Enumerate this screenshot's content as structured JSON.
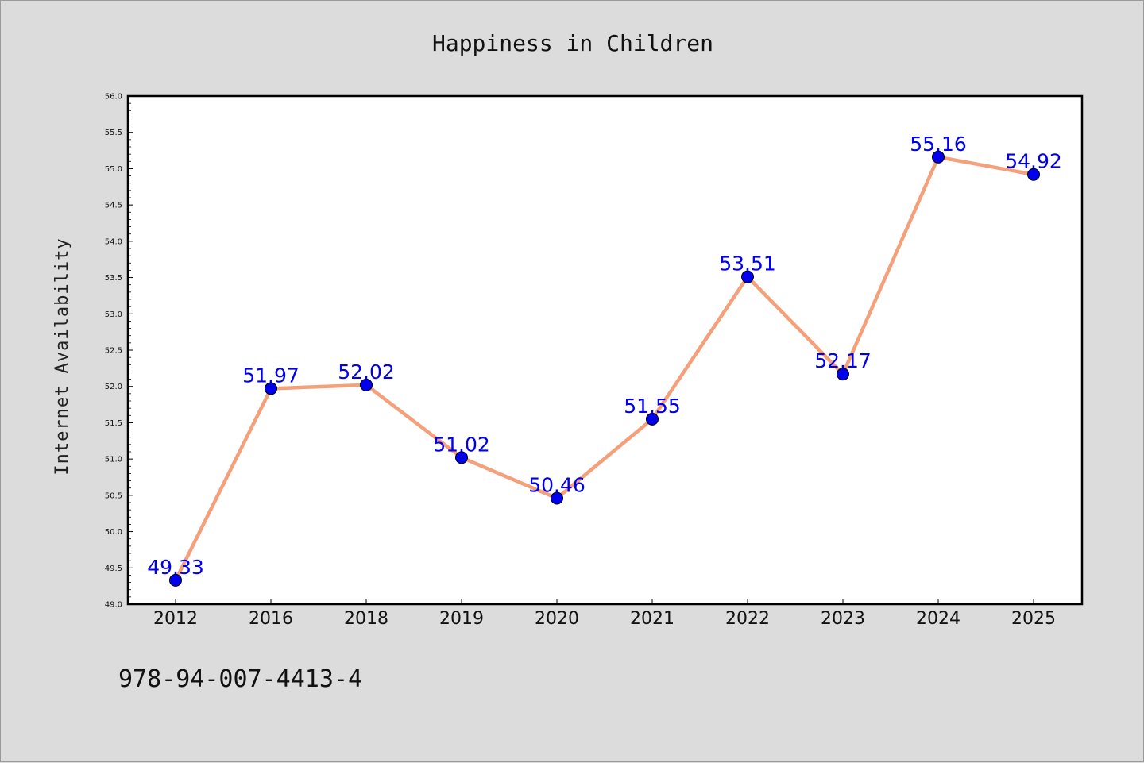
{
  "chart_data": {
    "type": "line",
    "title": "Happiness in Children",
    "xlabel": "",
    "ylabel": "Internet Availability",
    "categories": [
      "2012",
      "2016",
      "2018",
      "2019",
      "2020",
      "2021",
      "2022",
      "2023",
      "2024",
      "2025"
    ],
    "series": [
      {
        "values": [
          49.33,
          51.97,
          52.02,
          51.02,
          50.46,
          51.55,
          53.51,
          52.17,
          55.16,
          54.92
        ],
        "data_labels": [
          "49.33",
          "51.97",
          "52.02",
          "51.02",
          "50.46",
          "51.55",
          "53.51",
          "52.17",
          "55.16",
          "54.92"
        ],
        "line_color": "#f4a07a",
        "marker_color": "#0000ee",
        "label_color": "#0000ee"
      }
    ],
    "ylim": [
      49.0,
      56.0
    ],
    "yticks": [
      "49.0",
      "49.5",
      "50.0",
      "50.5",
      "51.0",
      "51.5",
      "52.0",
      "52.5",
      "53.0",
      "53.5",
      "54.0",
      "54.5",
      "55.0",
      "55.5",
      "56.0"
    ],
    "grid": false,
    "legend": "none"
  },
  "footer": {
    "code": "978-94-007-4413-4"
  },
  "colors": {
    "background": "#dcdcdc",
    "plot_background": "#ffffff",
    "axis": "#000000"
  }
}
